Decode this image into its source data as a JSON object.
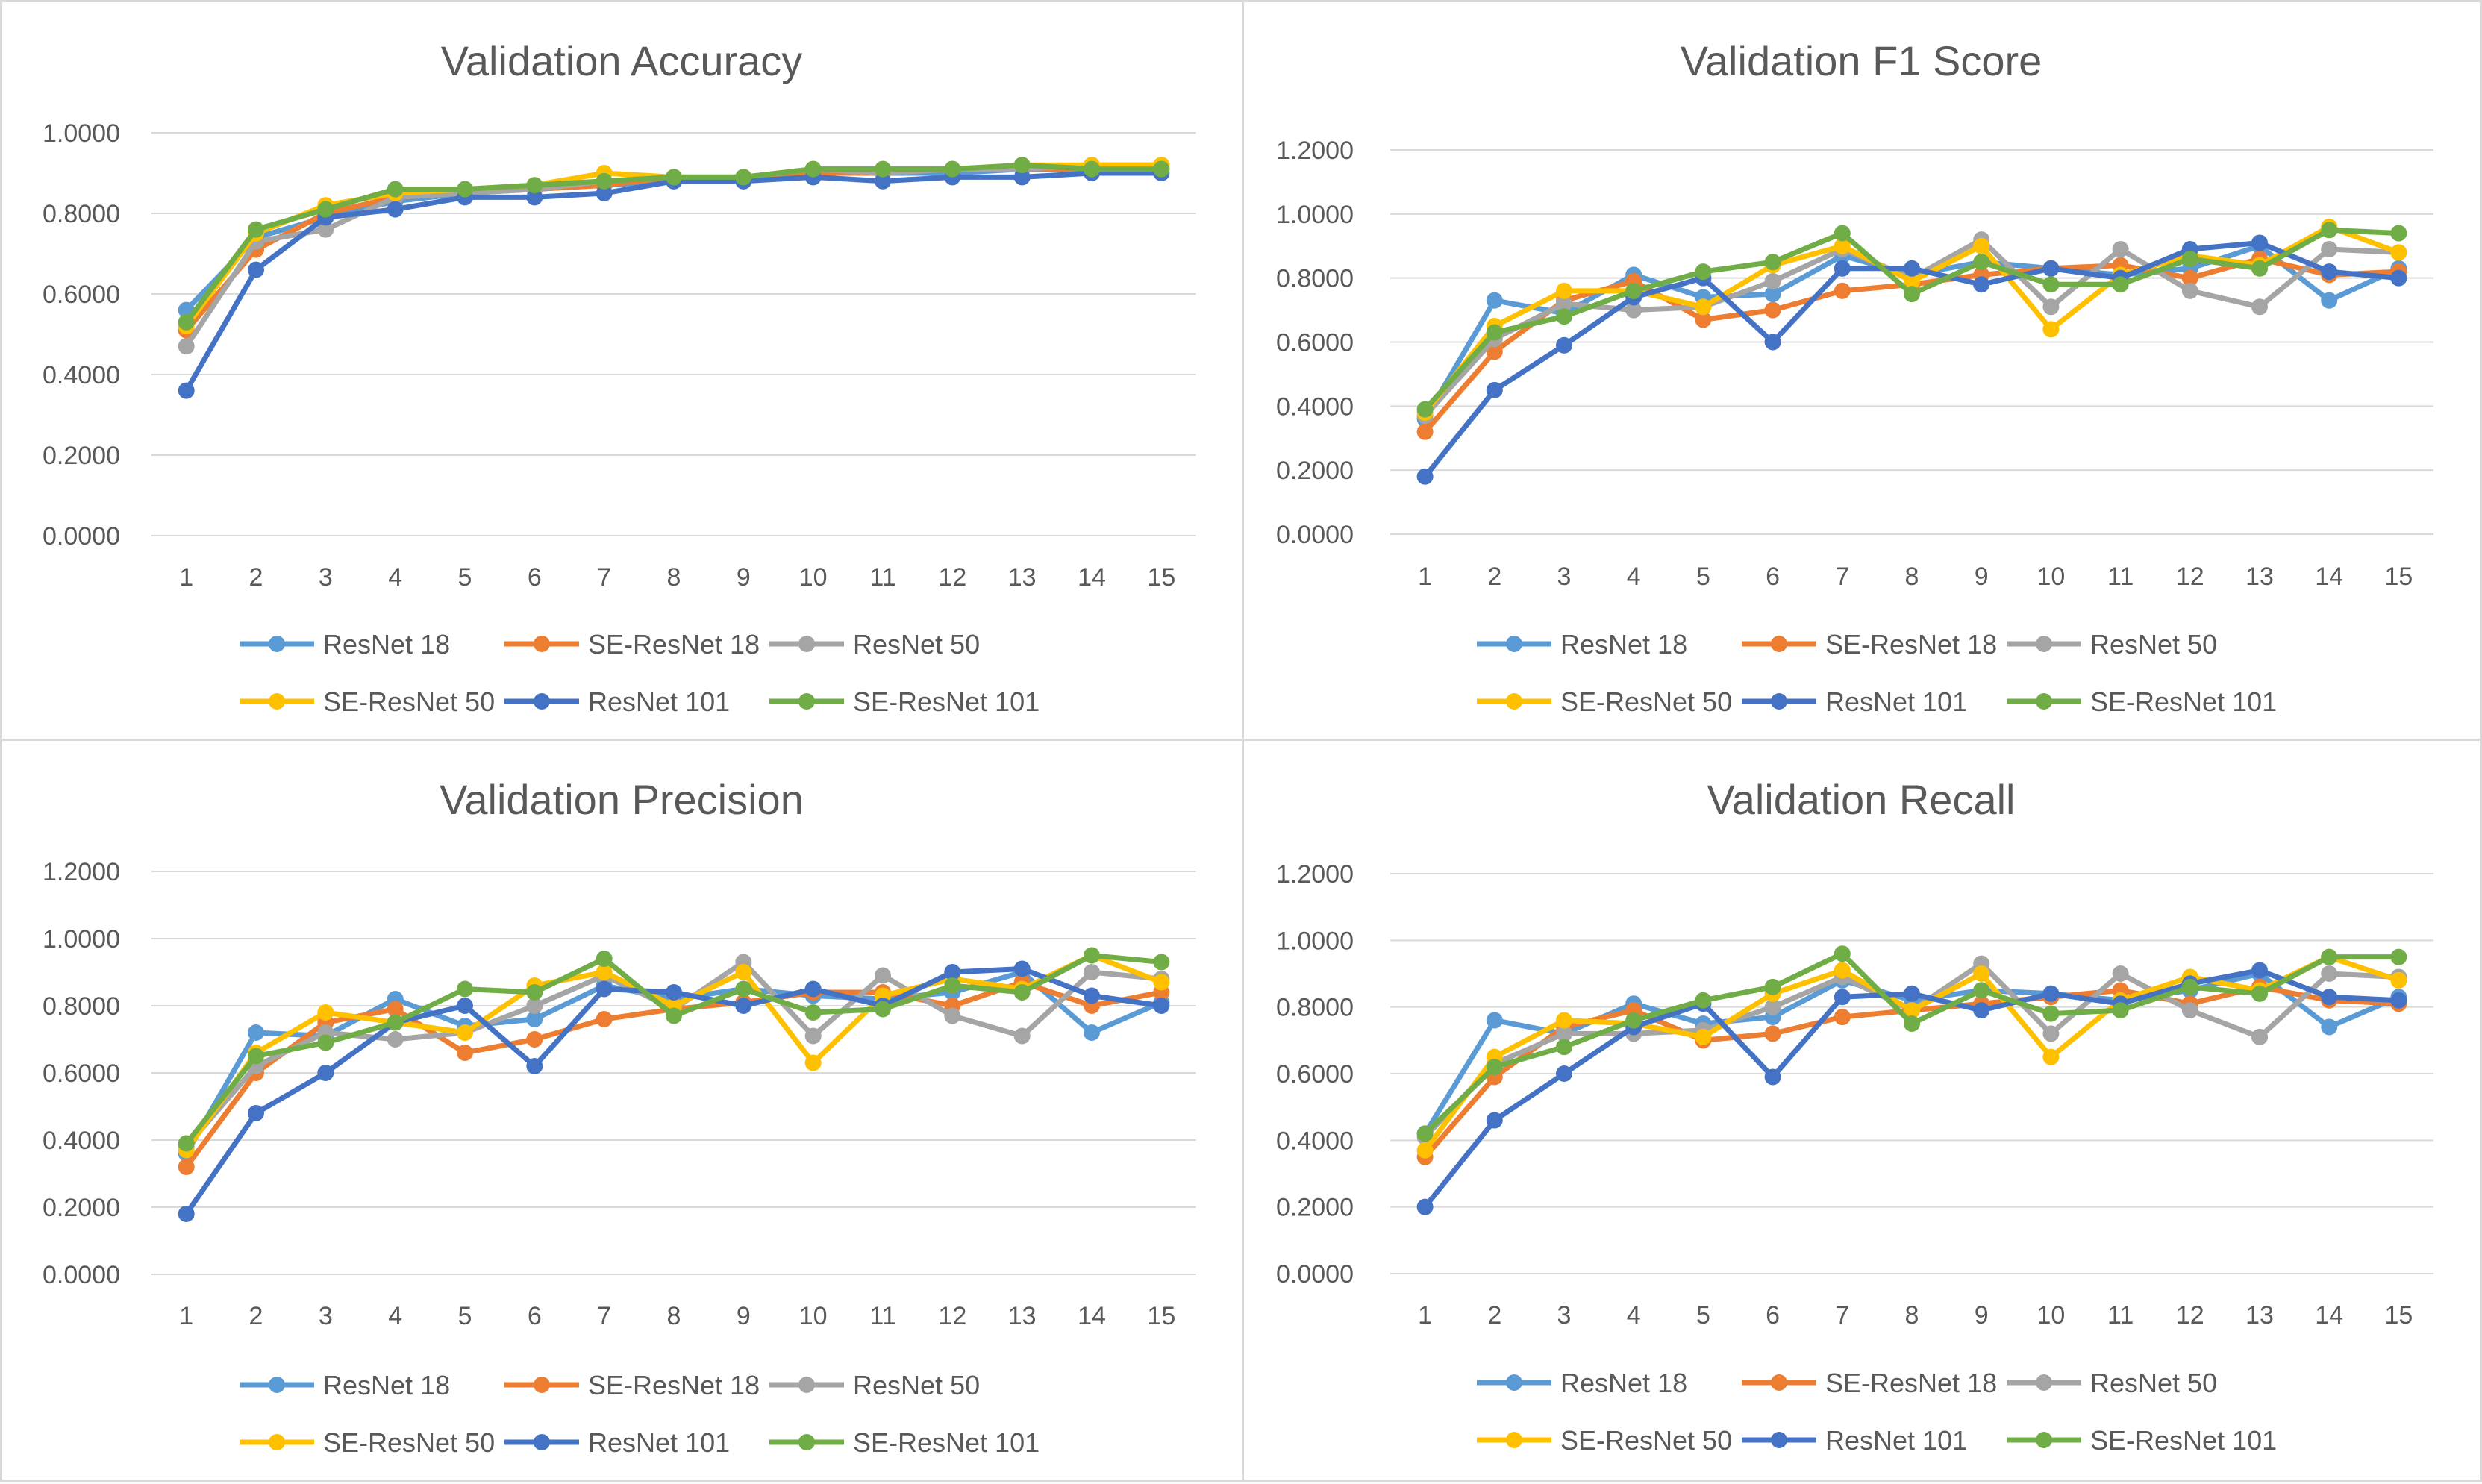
{
  "colors": {
    "ResNet 18": "#5B9BD5",
    "SE-ResNet 18": "#ED7D31",
    "ResNet 50": "#A5A5A5",
    "SE-ResNet 50": "#FFC000",
    "ResNet 101": "#4472C4",
    "SE-ResNet 101": "#70AD47",
    "gridline": "#d9d9d9",
    "text": "#595959"
  },
  "chart_data": [
    {
      "type": "line",
      "title": "Validation Accuracy",
      "xlabel": "",
      "ylabel": "",
      "categories": [
        "1",
        "2",
        "3",
        "4",
        "5",
        "6",
        "7",
        "8",
        "9",
        "10",
        "11",
        "12",
        "13",
        "14",
        "15"
      ],
      "ylim": [
        0,
        1.0
      ],
      "yticks": [
        "0.0000",
        "0.2000",
        "0.4000",
        "0.6000",
        "0.8000",
        "1.0000"
      ],
      "grid": true,
      "legend": "bottom",
      "series": [
        {
          "name": "ResNet 18",
          "values": [
            0.56,
            0.74,
            0.79,
            0.83,
            0.85,
            0.86,
            0.87,
            0.88,
            0.88,
            0.9,
            0.9,
            0.9,
            0.91,
            0.91,
            0.91
          ]
        },
        {
          "name": "SE-ResNet 18",
          "values": [
            0.51,
            0.71,
            0.8,
            0.84,
            0.85,
            0.86,
            0.87,
            0.89,
            0.89,
            0.9,
            0.9,
            0.91,
            0.91,
            0.91,
            0.91
          ]
        },
        {
          "name": "ResNet 50",
          "values": [
            0.47,
            0.73,
            0.76,
            0.84,
            0.85,
            0.86,
            0.88,
            0.89,
            0.89,
            0.91,
            0.9,
            0.91,
            0.91,
            0.92,
            0.92
          ]
        },
        {
          "name": "SE-ResNet 50",
          "values": [
            0.52,
            0.75,
            0.82,
            0.85,
            0.86,
            0.87,
            0.9,
            0.89,
            0.89,
            0.91,
            0.91,
            0.91,
            0.92,
            0.92,
            0.92
          ]
        },
        {
          "name": "ResNet 101",
          "values": [
            0.36,
            0.66,
            0.79,
            0.81,
            0.84,
            0.84,
            0.85,
            0.88,
            0.88,
            0.89,
            0.88,
            0.89,
            0.89,
            0.9,
            0.9
          ]
        },
        {
          "name": "SE-ResNet 101",
          "values": [
            0.53,
            0.76,
            0.81,
            0.86,
            0.86,
            0.87,
            0.88,
            0.89,
            0.89,
            0.91,
            0.91,
            0.91,
            0.92,
            0.91,
            0.91
          ]
        }
      ]
    },
    {
      "type": "line",
      "title": "Validation F1 Score",
      "xlabel": "",
      "ylabel": "",
      "categories": [
        "1",
        "2",
        "3",
        "4",
        "5",
        "6",
        "7",
        "8",
        "9",
        "10",
        "11",
        "12",
        "13",
        "14",
        "15"
      ],
      "ylim": [
        0,
        1.2
      ],
      "yticks": [
        "0.0000",
        "0.2000",
        "0.4000",
        "0.6000",
        "0.8000",
        "1.0000",
        "1.2000"
      ],
      "grid": true,
      "legend": "bottom",
      "series": [
        {
          "name": "ResNet 18",
          "values": [
            0.36,
            0.73,
            0.69,
            0.81,
            0.74,
            0.75,
            0.87,
            0.81,
            0.85,
            0.83,
            0.81,
            0.83,
            0.9,
            0.73,
            0.83
          ]
        },
        {
          "name": "SE-ResNet 18",
          "values": [
            0.32,
            0.57,
            0.73,
            0.79,
            0.67,
            0.7,
            0.76,
            0.78,
            0.81,
            0.83,
            0.84,
            0.8,
            0.86,
            0.81,
            0.82
          ]
        },
        {
          "name": "ResNet 50",
          "values": [
            0.37,
            0.61,
            0.72,
            0.7,
            0.71,
            0.79,
            0.89,
            0.8,
            0.92,
            0.71,
            0.89,
            0.76,
            0.71,
            0.89,
            0.88
          ]
        },
        {
          "name": "SE-ResNet 50",
          "values": [
            0.38,
            0.65,
            0.76,
            0.76,
            0.71,
            0.84,
            0.9,
            0.79,
            0.9,
            0.64,
            0.81,
            0.87,
            0.84,
            0.96,
            0.88
          ]
        },
        {
          "name": "ResNet 101",
          "values": [
            0.18,
            0.45,
            0.59,
            0.74,
            0.8,
            0.6,
            0.83,
            0.83,
            0.78,
            0.83,
            0.8,
            0.89,
            0.91,
            0.82,
            0.8
          ]
        },
        {
          "name": "SE-ResNet 101",
          "values": [
            0.39,
            0.63,
            0.68,
            0.76,
            0.82,
            0.85,
            0.94,
            0.75,
            0.85,
            0.78,
            0.78,
            0.86,
            0.83,
            0.95,
            0.94
          ]
        }
      ]
    },
    {
      "type": "line",
      "title": "Validation Precision",
      "xlabel": "",
      "ylabel": "",
      "categories": [
        "1",
        "2",
        "3",
        "4",
        "5",
        "6",
        "7",
        "8",
        "9",
        "10",
        "11",
        "12",
        "13",
        "14",
        "15"
      ],
      "ylim": [
        0,
        1.2
      ],
      "yticks": [
        "0.0000",
        "0.2000",
        "0.4000",
        "0.6000",
        "0.8000",
        "1.0000",
        "1.2000"
      ],
      "grid": true,
      "legend": "bottom",
      "series": [
        {
          "name": "ResNet 18",
          "values": [
            0.36,
            0.72,
            0.71,
            0.82,
            0.74,
            0.76,
            0.86,
            0.82,
            0.85,
            0.83,
            0.82,
            0.84,
            0.9,
            0.72,
            0.81
          ]
        },
        {
          "name": "SE-ResNet 18",
          "values": [
            0.32,
            0.6,
            0.75,
            0.79,
            0.66,
            0.7,
            0.76,
            0.79,
            0.81,
            0.84,
            0.84,
            0.8,
            0.87,
            0.8,
            0.84
          ]
        },
        {
          "name": "ResNet 50",
          "values": [
            0.38,
            0.62,
            0.72,
            0.7,
            0.72,
            0.8,
            0.89,
            0.79,
            0.93,
            0.71,
            0.89,
            0.77,
            0.71,
            0.9,
            0.88
          ]
        },
        {
          "name": "SE-ResNet 50",
          "values": [
            0.37,
            0.66,
            0.78,
            0.75,
            0.72,
            0.86,
            0.9,
            0.8,
            0.9,
            0.63,
            0.83,
            0.88,
            0.85,
            0.95,
            0.87
          ]
        },
        {
          "name": "ResNet 101",
          "values": [
            0.18,
            0.48,
            0.6,
            0.75,
            0.8,
            0.62,
            0.85,
            0.84,
            0.8,
            0.85,
            0.8,
            0.9,
            0.91,
            0.83,
            0.8
          ]
        },
        {
          "name": "SE-ResNet 101",
          "values": [
            0.39,
            0.65,
            0.69,
            0.75,
            0.85,
            0.84,
            0.94,
            0.77,
            0.85,
            0.78,
            0.79,
            0.86,
            0.84,
            0.95,
            0.93
          ]
        }
      ]
    },
    {
      "type": "line",
      "title": "Validation Recall",
      "xlabel": "",
      "ylabel": "",
      "categories": [
        "1",
        "2",
        "3",
        "4",
        "5",
        "6",
        "7",
        "8",
        "9",
        "10",
        "11",
        "12",
        "13",
        "14",
        "15"
      ],
      "ylim": [
        0,
        1.2
      ],
      "yticks": [
        "0.0000",
        "0.2000",
        "0.4000",
        "0.6000",
        "0.8000",
        "1.0000",
        "1.2000"
      ],
      "grid": true,
      "legend": "bottom",
      "series": [
        {
          "name": "ResNet 18",
          "values": [
            0.42,
            0.76,
            0.72,
            0.81,
            0.75,
            0.77,
            0.88,
            0.82,
            0.85,
            0.84,
            0.82,
            0.85,
            0.9,
            0.74,
            0.83
          ]
        },
        {
          "name": "SE-ResNet 18",
          "values": [
            0.35,
            0.59,
            0.74,
            0.79,
            0.7,
            0.72,
            0.77,
            0.79,
            0.81,
            0.83,
            0.85,
            0.81,
            0.86,
            0.82,
            0.81
          ]
        },
        {
          "name": "ResNet 50",
          "values": [
            0.41,
            0.63,
            0.72,
            0.72,
            0.73,
            0.8,
            0.89,
            0.79,
            0.93,
            0.72,
            0.9,
            0.79,
            0.71,
            0.9,
            0.89
          ]
        },
        {
          "name": "SE-ResNet 50",
          "values": [
            0.37,
            0.65,
            0.76,
            0.75,
            0.71,
            0.84,
            0.91,
            0.79,
            0.9,
            0.65,
            0.82,
            0.89,
            0.85,
            0.95,
            0.88
          ]
        },
        {
          "name": "ResNet 101",
          "values": [
            0.2,
            0.46,
            0.6,
            0.74,
            0.81,
            0.59,
            0.83,
            0.84,
            0.79,
            0.84,
            0.81,
            0.87,
            0.91,
            0.83,
            0.82
          ]
        },
        {
          "name": "SE-ResNet 101",
          "values": [
            0.42,
            0.62,
            0.68,
            0.76,
            0.82,
            0.86,
            0.96,
            0.75,
            0.85,
            0.78,
            0.79,
            0.86,
            0.84,
            0.95,
            0.95
          ]
        }
      ]
    }
  ]
}
